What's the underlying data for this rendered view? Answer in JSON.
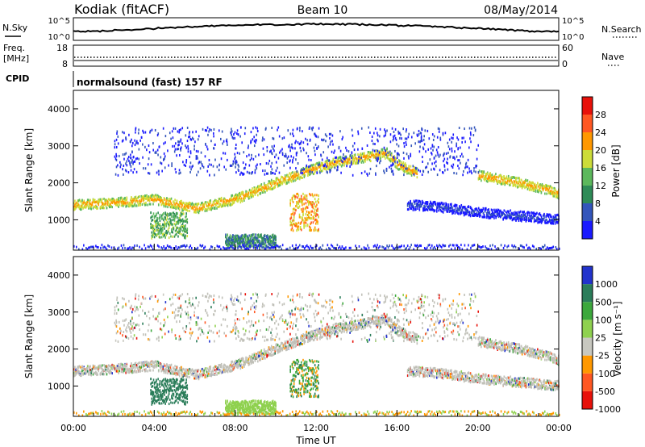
{
  "header": {
    "station": "Kodiak (fitACF)",
    "beam": "Beam 10",
    "date": "08/May/2014"
  },
  "scan_panels": {
    "nsky_label": "N.Sky",
    "nsearch_label": "N.Search",
    "nsky_ticks": [
      "10^5",
      "10^0"
    ],
    "nsearch_ticks": [
      "10^5",
      "10^0"
    ],
    "freq_label": [
      "Freq.",
      "[MHz]"
    ],
    "freq_ticks": [
      "18",
      "8"
    ],
    "nave_label": "Nave",
    "nave_ticks": [
      "60",
      "0"
    ],
    "cpid_label": "CPID",
    "cpid_text": "normalsound (fast) 157 RF"
  },
  "colors": {
    "power": [
      "#1a1aff",
      "#3355bb",
      "#2e8b57",
      "#5cb85c",
      "#cddc39",
      "#ff9800",
      "#ff5722",
      "#e8110a"
    ],
    "velocity": [
      "#e8110a",
      "#ff5722",
      "#ff9800",
      "#c8c8c0",
      "#8fd14f",
      "#3ca83c",
      "#2b7d5a",
      "#2233cc"
    ],
    "ground_scatter": "#c0c0b8"
  },
  "chart_data": [
    {
      "type": "heatmap",
      "title": "Power",
      "xlabel": "",
      "ylabel": "Slant Range [km]",
      "x_ticks": [
        "00:00",
        "04:00",
        "08:00",
        "12:00",
        "16:00",
        "20:00",
        "00:00"
      ],
      "xlim_hours": [
        0,
        24
      ],
      "ylim_km": [
        180,
        4500
      ],
      "y_ticks": [
        "1000",
        "2000",
        "3000",
        "4000"
      ],
      "colorbar_label": "Power [dB]",
      "colorbar_ticks": [
        "4",
        "8",
        "12",
        "16",
        "20",
        "24",
        "28"
      ],
      "structures": [
        {
          "name": "main band",
          "path_hours": [
            0,
            2,
            4,
            6,
            8,
            10,
            12,
            13,
            14.5,
            15.5,
            16,
            17
          ],
          "path_km": [
            1400,
            1450,
            1550,
            1300,
            1550,
            2000,
            2400,
            2550,
            2700,
            2800,
            2500,
            2250
          ],
          "power_db": 24
        },
        {
          "name": "spread echo 04-06",
          "hours": [
            3.8,
            5.6
          ],
          "km": [
            500,
            1200
          ],
          "power_db": 20
        },
        {
          "name": "spread echo 10-12",
          "hours": [
            10.7,
            12.1
          ],
          "km": [
            700,
            1700
          ],
          "power_db": 28
        },
        {
          "name": "ground low",
          "hours": [
            7.5,
            10
          ],
          "km": [
            250,
            600
          ],
          "power_db": 16
        },
        {
          "name": "late band",
          "path_hours": [
            16.5,
            18,
            20,
            22,
            24
          ],
          "path_km": [
            1400,
            1350,
            1200,
            1100,
            1000
          ],
          "power_db": 8
        },
        {
          "name": "evening band",
          "path_hours": [
            20,
            22,
            23.5,
            24
          ],
          "path_km": [
            2200,
            2000,
            1800,
            1700
          ],
          "power_db": 24
        }
      ]
    },
    {
      "type": "heatmap",
      "title": "Velocity",
      "xlabel": "Time UT",
      "ylabel": "Slant Range [km]",
      "x_ticks": [
        "00:00",
        "04:00",
        "08:00",
        "12:00",
        "16:00",
        "20:00",
        "00:00"
      ],
      "xlim_hours": [
        0,
        24
      ],
      "ylim_km": [
        180,
        4500
      ],
      "y_ticks": [
        "1000",
        "2000",
        "3000",
        "4000"
      ],
      "colorbar_label": "Velocity [m s⁻¹]",
      "colorbar_ticks": [
        "1000",
        "500",
        "100",
        "25",
        "-25",
        "-100",
        "-500",
        "-1000"
      ]
    }
  ]
}
